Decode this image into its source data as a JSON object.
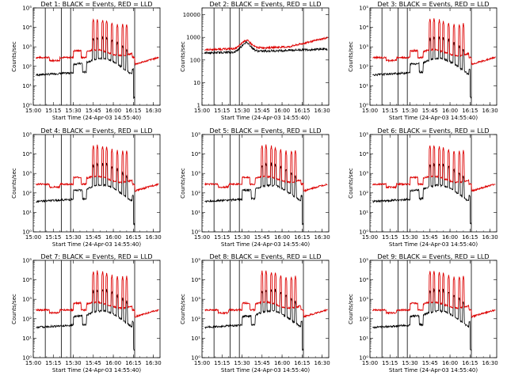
{
  "colors": {
    "events": "#000000",
    "lld": "#dd0000",
    "axis": "#000000"
  },
  "chart_data": [
    {
      "type": "line",
      "title": "Det 1: BLACK = Events, RED = LLD",
      "xlabel": "Start Time (24-Apr-03 14:55:40)",
      "ylabel": "Counts/sec",
      "yscale": "log",
      "ylim": [
        1,
        100000
      ],
      "yticks": [
        "10⁰",
        "10¹",
        "10²",
        "10³",
        "10⁴",
        "10⁵"
      ],
      "xlim": [
        "15:00",
        "16:35"
      ],
      "xticks": [
        "15:00",
        "15:15",
        "15:30",
        "15:45",
        "16:00",
        "16:15",
        "16:30"
      ],
      "vlines": [
        "15:09",
        "15:21",
        "15:28",
        "16:16"
      ],
      "series": [
        {
          "name": "Events",
          "color": "black"
        },
        {
          "name": "LLD",
          "color": "red"
        }
      ]
    },
    {
      "type": "line",
      "title": "Det 2: BLACK = Events, RED = LLD",
      "xlabel": "Start Time (24-Apr-03 14:55:40)",
      "ylabel": "Counts/sec",
      "yscale": "log",
      "ylim": [
        1,
        20000
      ],
      "yticks": [
        "1",
        "10",
        "100",
        "1000",
        "10000"
      ],
      "xlim": [
        "15:00",
        "16:35"
      ],
      "xticks": [
        "15:00",
        "15:15",
        "15:30",
        "15:45",
        "16:00",
        "16:15",
        "16:30"
      ],
      "vlines": [
        "15:09",
        "15:21",
        "15:28",
        "16:16"
      ],
      "series": [
        {
          "name": "Events",
          "color": "black"
        },
        {
          "name": "LLD",
          "color": "red"
        }
      ]
    },
    {
      "type": "line",
      "title": "Det 3: BLACK = Events, RED = LLD",
      "xlabel": "Start Time (24-Apr-03 14:55:40)",
      "ylabel": "Counts/sec",
      "yscale": "log",
      "ylim": [
        1,
        100000
      ],
      "yticks": [
        "10⁰",
        "10¹",
        "10²",
        "10³",
        "10⁴",
        "10⁵"
      ],
      "xlim": [
        "15:00",
        "16:35"
      ],
      "xticks": [
        "15:00",
        "15:15",
        "15:30",
        "15:45",
        "16:00",
        "16:15",
        "16:30"
      ],
      "vlines": [
        "15:09",
        "15:21",
        "15:28",
        "16:16"
      ],
      "series": [
        {
          "name": "Events",
          "color": "black"
        },
        {
          "name": "LLD",
          "color": "red"
        }
      ]
    },
    {
      "type": "line",
      "title": "Det 4: BLACK = Events, RED = LLD",
      "xlabel": "Start Time (24-Apr-03 14:55:40)",
      "ylabel": "Counts/sec",
      "yscale": "log",
      "ylim": [
        1,
        100000
      ],
      "yticks": [
        "10⁰",
        "10¹",
        "10²",
        "10³",
        "10⁴",
        "10⁵"
      ],
      "xlim": [
        "15:00",
        "16:35"
      ],
      "xticks": [
        "15:00",
        "15:15",
        "15:30",
        "15:45",
        "16:00",
        "16:15",
        "16:30"
      ],
      "vlines": [
        "15:09",
        "15:21",
        "15:28",
        "16:16"
      ],
      "series": [
        {
          "name": "Events",
          "color": "black"
        },
        {
          "name": "LLD",
          "color": "red"
        }
      ]
    },
    {
      "type": "line",
      "title": "Det 5: BLACK = Events, RED = LLD",
      "xlabel": "Start Time (24-Apr-03 14:55:40)",
      "ylabel": "Counts/sec",
      "yscale": "log",
      "ylim": [
        1,
        100000
      ],
      "yticks": [
        "10⁰",
        "10¹",
        "10²",
        "10³",
        "10⁴",
        "10⁵"
      ],
      "xlim": [
        "15:00",
        "16:35"
      ],
      "xticks": [
        "15:00",
        "15:15",
        "15:30",
        "15:45",
        "16:00",
        "16:15",
        "16:30"
      ],
      "vlines": [
        "15:09",
        "15:21",
        "15:28",
        "16:16"
      ],
      "series": [
        {
          "name": "Events",
          "color": "black"
        },
        {
          "name": "LLD",
          "color": "red"
        }
      ]
    },
    {
      "type": "line",
      "title": "Det 6: BLACK = Events, RED = LLD",
      "xlabel": "Start Time (24-Apr-03 14:55:40)",
      "ylabel": "Counts/sec",
      "yscale": "log",
      "ylim": [
        1,
        100000
      ],
      "yticks": [
        "10⁰",
        "10¹",
        "10²",
        "10³",
        "10⁴",
        "10⁵"
      ],
      "xlim": [
        "15:00",
        "16:35"
      ],
      "xticks": [
        "15:00",
        "15:15",
        "15:30",
        "15:45",
        "16:00",
        "16:15",
        "16:30"
      ],
      "vlines": [
        "15:09",
        "15:21",
        "15:28",
        "16:16"
      ],
      "series": [
        {
          "name": "Events",
          "color": "black"
        },
        {
          "name": "LLD",
          "color": "red"
        }
      ]
    },
    {
      "type": "line",
      "title": "Det 7: BLACK = Events, RED = LLD",
      "xlabel": "Start Time (24-Apr-03 14:55:40)",
      "ylabel": "Counts/sec",
      "yscale": "log",
      "ylim": [
        1,
        100000
      ],
      "yticks": [
        "10⁰",
        "10¹",
        "10²",
        "10³",
        "10⁴",
        "10⁵"
      ],
      "xlim": [
        "15:00",
        "16:35"
      ],
      "xticks": [
        "15:00",
        "15:15",
        "15:30",
        "15:45",
        "16:00",
        "16:15",
        "16:30"
      ],
      "vlines": [
        "15:09",
        "15:21",
        "15:28",
        "16:16"
      ],
      "series": [
        {
          "name": "Events",
          "color": "black"
        },
        {
          "name": "LLD",
          "color": "red"
        }
      ]
    },
    {
      "type": "line",
      "title": "Det 8: BLACK = Events, RED = LLD",
      "xlabel": "Start Time (24-Apr-03 14:55:40)",
      "ylabel": "Counts/sec",
      "yscale": "log",
      "ylim": [
        1,
        100000
      ],
      "yticks": [
        "10⁰",
        "10¹",
        "10²",
        "10³",
        "10⁴",
        "10⁵"
      ],
      "xlim": [
        "15:00",
        "16:35"
      ],
      "xticks": [
        "15:00",
        "15:15",
        "15:30",
        "15:45",
        "16:00",
        "16:15",
        "16:30"
      ],
      "vlines": [
        "15:09",
        "15:21",
        "15:28",
        "16:16"
      ],
      "series": [
        {
          "name": "Events",
          "color": "black"
        },
        {
          "name": "LLD",
          "color": "red"
        }
      ]
    },
    {
      "type": "line",
      "title": "Det 9: BLACK = Events, RED = LLD",
      "xlabel": "Start Time (24-Apr-03 14:55:40)",
      "ylabel": "Counts/sec",
      "yscale": "log",
      "ylim": [
        1,
        100000
      ],
      "yticks": [
        "10⁰",
        "10¹",
        "10²",
        "10³",
        "10⁴",
        "10⁵"
      ],
      "xlim": [
        "15:00",
        "16:35"
      ],
      "xticks": [
        "15:00",
        "15:15",
        "15:30",
        "15:45",
        "16:00",
        "16:15",
        "16:30"
      ],
      "vlines": [
        "15:09",
        "15:21",
        "15:28",
        "16:16"
      ],
      "series": [
        {
          "name": "Events",
          "color": "black"
        },
        {
          "name": "LLD",
          "color": "red"
        }
      ]
    }
  ]
}
